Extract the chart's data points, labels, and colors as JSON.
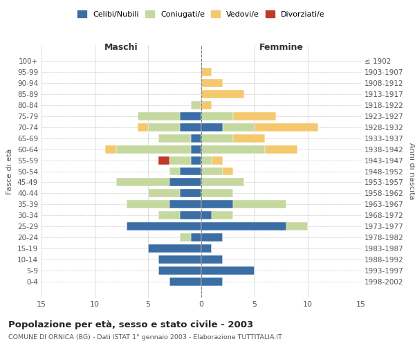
{
  "age_groups": [
    "0-4",
    "5-9",
    "10-14",
    "15-19",
    "20-24",
    "25-29",
    "30-34",
    "35-39",
    "40-44",
    "45-49",
    "50-54",
    "55-59",
    "60-64",
    "65-69",
    "70-74",
    "75-79",
    "80-84",
    "85-89",
    "90-94",
    "95-99",
    "100+"
  ],
  "birth_years": [
    "1998-2002",
    "1993-1997",
    "1988-1992",
    "1983-1987",
    "1978-1982",
    "1973-1977",
    "1968-1972",
    "1963-1967",
    "1958-1962",
    "1953-1957",
    "1948-1952",
    "1943-1947",
    "1938-1942",
    "1933-1937",
    "1928-1932",
    "1923-1927",
    "1918-1922",
    "1913-1917",
    "1908-1912",
    "1903-1907",
    "≤ 1902"
  ],
  "male": {
    "celibi": [
      3,
      4,
      4,
      5,
      1,
      7,
      2,
      3,
      2,
      3,
      2,
      1,
      1,
      1,
      2,
      2,
      0,
      0,
      0,
      0,
      0
    ],
    "coniugati": [
      0,
      0,
      0,
      0,
      1,
      0,
      2,
      4,
      3,
      5,
      1,
      2,
      7,
      3,
      3,
      4,
      1,
      0,
      0,
      0,
      0
    ],
    "vedovi": [
      0,
      0,
      0,
      0,
      0,
      0,
      0,
      0,
      0,
      0,
      0,
      0,
      1,
      0,
      1,
      0,
      0,
      0,
      0,
      0,
      0
    ],
    "divorziati": [
      0,
      0,
      0,
      0,
      0,
      0,
      0,
      0,
      0,
      0,
      0,
      1,
      0,
      0,
      0,
      0,
      0,
      0,
      0,
      0,
      0
    ]
  },
  "female": {
    "celibi": [
      2,
      5,
      2,
      1,
      2,
      8,
      1,
      3,
      0,
      0,
      0,
      0,
      0,
      0,
      2,
      0,
      0,
      0,
      0,
      0,
      0
    ],
    "coniugati": [
      0,
      0,
      0,
      0,
      0,
      2,
      2,
      5,
      3,
      4,
      2,
      1,
      6,
      3,
      3,
      3,
      0,
      0,
      0,
      0,
      0
    ],
    "vedovi": [
      0,
      0,
      0,
      0,
      0,
      0,
      0,
      0,
      0,
      0,
      1,
      1,
      3,
      3,
      6,
      4,
      1,
      4,
      2,
      1,
      0
    ],
    "divorziati": [
      0,
      0,
      0,
      0,
      0,
      0,
      0,
      0,
      0,
      0,
      0,
      0,
      0,
      0,
      0,
      0,
      0,
      0,
      0,
      0,
      0
    ]
  },
  "colors": {
    "celibi": "#3a6ea5",
    "coniugati": "#c5d8a0",
    "vedovi": "#f5c86e",
    "divorziati": "#c0392b"
  },
  "xlim": 15,
  "title": "Popolazione per età, sesso e stato civile - 2003",
  "subtitle": "COMUNE DI ORNICA (BG) - Dati ISTAT 1° gennaio 2003 - Elaborazione TUTTITALIA.IT",
  "ylabel_left": "Fasce di età",
  "ylabel_right": "Anni di nascita",
  "xlabel_male": "Maschi",
  "xlabel_female": "Femmine",
  "legend_labels": [
    "Celibi/Nubili",
    "Coniugati/e",
    "Vedovi/e",
    "Divorziati/e"
  ],
  "bg_color": "#ffffff",
  "grid_color": "#cccccc"
}
